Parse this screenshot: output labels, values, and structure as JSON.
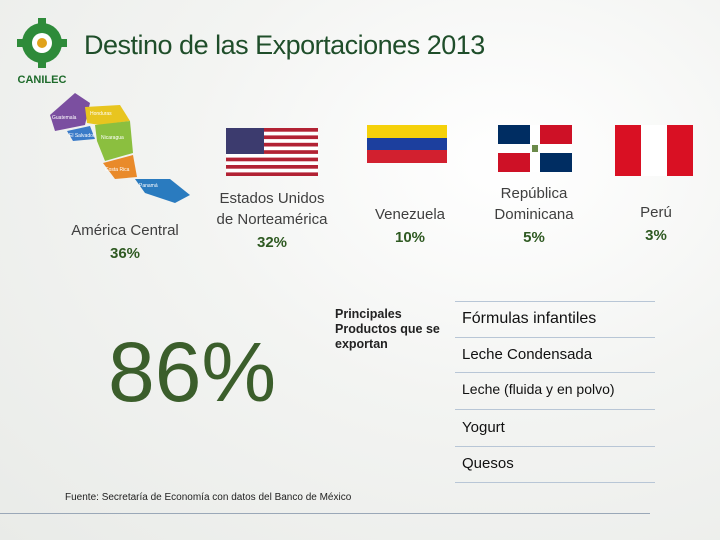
{
  "header": {
    "title": "Destino de las Exportaciones 2013",
    "logo": "CANILEC"
  },
  "map_labels": [
    "Guatemala",
    "Honduras",
    "El Salvador",
    "Nicaragua",
    "Costa Rica",
    "Panamá"
  ],
  "destinations": [
    {
      "name": "América Central",
      "share": "36%"
    },
    {
      "name": "Estados Unidos de Norteamérica",
      "share": "32%"
    },
    {
      "name": "Venezuela",
      "share": "10%"
    },
    {
      "name": "República Dominicana",
      "share": "5%"
    },
    {
      "name": "Perú",
      "share": "3%"
    }
  ],
  "total": "86%",
  "products": {
    "label": "Principales Productos que se exportan",
    "items": [
      "Fórmulas infantiles",
      "Leche Condensada",
      "Leche (fluida y en polvo)",
      "Yogurt",
      "Quesos"
    ]
  },
  "source": "Fuente: Secretaría de Economía con datos del Banco de México"
}
